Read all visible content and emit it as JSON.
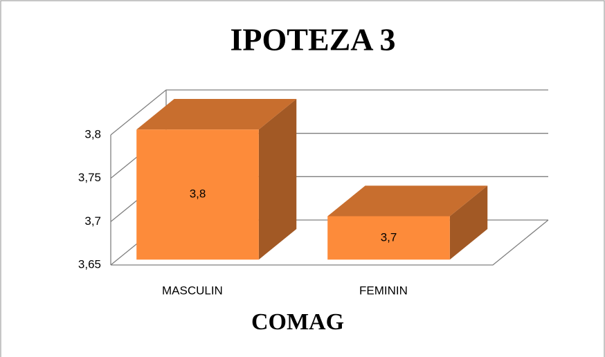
{
  "chart_data": {
    "type": "bar3d",
    "title": "IPOTEZA 3",
    "x_label": "COMAG",
    "categories": [
      "MASCULIN",
      "FEMININ"
    ],
    "values": [
      3.8,
      3.7
    ],
    "value_labels": [
      "3,8",
      "3,7"
    ],
    "color": "#fd8b3a",
    "ylim": [
      3.65,
      3.8
    ],
    "yticks": [
      {
        "value": 3.65,
        "label": "3,65"
      },
      {
        "value": 3.7,
        "label": "3,7"
      },
      {
        "value": 3.75,
        "label": "3,75"
      },
      {
        "value": 3.8,
        "label": "3,8"
      }
    ],
    "grid": true
  }
}
